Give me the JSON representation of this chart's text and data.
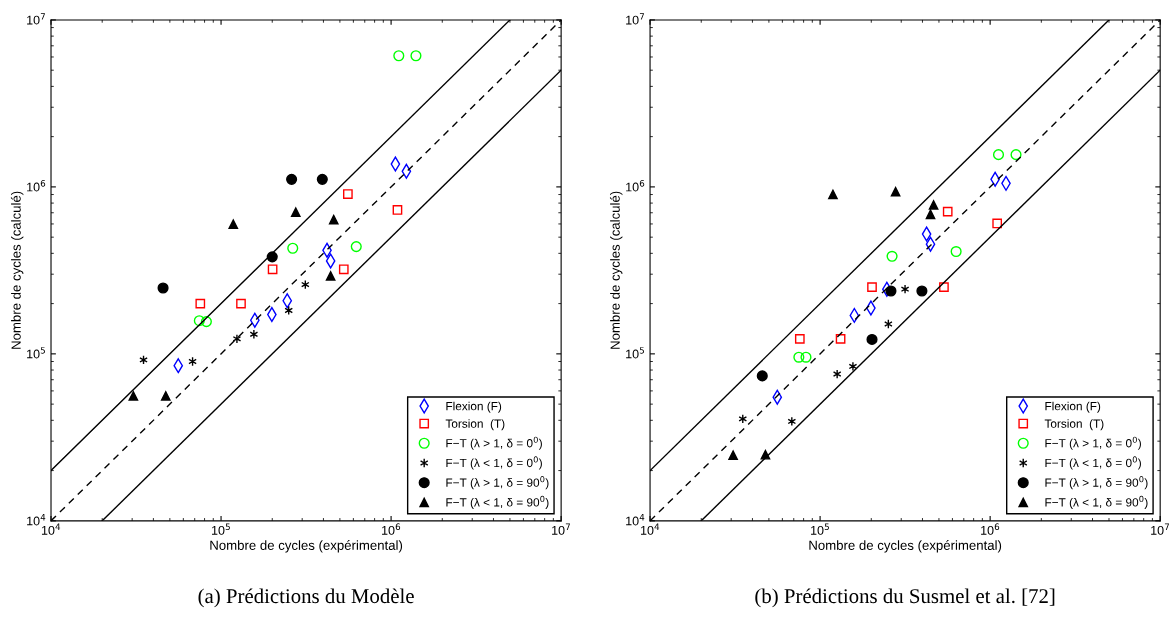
{
  "chart_data": [
    {
      "type": "scatter",
      "title": "(a) Prédictions du Modèle",
      "xlabel": "Nombre de cycles (expérimental)",
      "ylabel": "Nombre de cycles (calculé)",
      "log": "xy",
      "grid": false,
      "legend": "bottom right",
      "xlim": [
        10000,
        10000000
      ],
      "ylim": [
        10000,
        10000000
      ],
      "xticks": [
        {
          "value": 10000,
          "label": "10$^{4}$"
        },
        {
          "value": 100000,
          "label": "10$^{5}$"
        },
        {
          "value": 1000000,
          "label": "10$^{6}$"
        },
        {
          "value": 10000000,
          "label": "10$^{7}$"
        }
      ],
      "yticks": [
        {
          "value": 10000,
          "label": "10$^{4}$"
        },
        {
          "value": 100000,
          "label": "10$^{5}$"
        },
        {
          "value": 1000000,
          "label": "10$^{6}$"
        },
        {
          "value": 10000000,
          "label": "10$^{7}$"
        }
      ],
      "series": [
        {
          "name": "Flexion (F)",
          "color": "#0000ff",
          "marker": "diamond",
          "x": [
            56000,
            158000,
            199000,
            245000,
            420000,
            441000,
            1060000,
            1230000
          ],
          "values": [
            85000,
            159000,
            172000,
            208000,
            417000,
            360000,
            1370000,
            1240000
          ]
        },
        {
          "name": "Torsion  (T)",
          "color": "#ff0000",
          "marker": "square",
          "x": [
            75500,
            131000,
            201000,
            527000,
            557000,
            1090000
          ],
          "values": [
            200000,
            200000,
            321000,
            321000,
            906000,
            728000
          ]
        },
        {
          "name": "F−T (λ > 1, δ = 0$^{0}$)",
          "color": "#00ff00",
          "marker": "circle",
          "x": [
            74500,
            82000,
            264000,
            624000,
            1110000,
            1400000
          ],
          "values": [
            158000,
            156000,
            429000,
            439000,
            6100000,
            6100000
          ]
        },
        {
          "name": "F−T (λ < 1, δ = 0$^{0}$)",
          "color": "#000000",
          "marker": "cross",
          "x": [
            35000,
            68000,
            124000,
            156000,
            250000,
            313000
          ],
          "values": [
            92000,
            90000,
            123000,
            131000,
            182000,
            260000
          ]
        },
        {
          "name": "F−T (λ > 1, δ = 90$^{0}$)",
          "color": "#000000",
          "marker": "circle",
          "x": [
            45600,
            200000,
            260000,
            394000
          ],
          "values": [
            248000,
            381000,
            1110000,
            1110000
          ]
        },
        {
          "name": "F−T (λ < 1, δ = 90$^{0}$)",
          "color": "#000000",
          "marker": "triangle",
          "x": [
            30500,
            47300,
            118000,
            275000,
            460000,
            441000
          ],
          "values": [
            56000,
            56000,
            598000,
            706000,
            637000,
            293000
          ]
        },
        {
          "type": "line",
          "color": "#000000",
          "line_style": "solid",
          "marker": "none",
          "x": [
            10000,
            5000000
          ],
          "values": [
            20000,
            10000000
          ]
        },
        {
          "type": "line",
          "color": "#000000",
          "line_style": "dashed",
          "marker": "none",
          "x": [
            10000,
            10000000
          ],
          "values": [
            10000,
            10000000
          ]
        },
        {
          "type": "line",
          "color": "#000000",
          "line_style": "solid",
          "marker": "none",
          "x": [
            20000,
            10000000
          ],
          "values": [
            10000,
            5000000
          ]
        }
      ]
    },
    {
      "type": "scatter",
      "title": "(b) Prédictions du Susmel et al. [72]",
      "xlabel": "Nombre de cycles (expérimental)",
      "ylabel": "Nombre de cycles (calculé)",
      "log": "xy",
      "grid": false,
      "legend": "bottom right",
      "xlim": [
        10000,
        10000000
      ],
      "ylim": [
        10000,
        10000000
      ],
      "xticks": [
        {
          "value": 10000,
          "label": "10$^{4}$"
        },
        {
          "value": 100000,
          "label": "10$^{5}$"
        },
        {
          "value": 1000000,
          "label": "10$^{6}$"
        },
        {
          "value": 10000000,
          "label": "10$^{7}$"
        }
      ],
      "yticks": [
        {
          "value": 10000,
          "label": "10$^{4}$"
        },
        {
          "value": 100000,
          "label": "10$^{5}$"
        },
        {
          "value": 1000000,
          "label": "10$^{6}$"
        },
        {
          "value": 10000000,
          "label": "10$^{7}$"
        }
      ],
      "series": [
        {
          "name": "Flexion (F)",
          "color": "#0000ff",
          "marker": "diamond",
          "x": [
            56000,
            159000,
            199000,
            247000,
            423000,
            446000,
            1070000,
            1240000
          ],
          "values": [
            55000,
            170000,
            188000,
            244000,
            522000,
            454000,
            1110000,
            1050000
          ]
        },
        {
          "name": "Torsion  (T)",
          "color": "#ff0000",
          "marker": "square",
          "x": [
            76000,
            132000,
            202000,
            535000,
            563000,
            1100000
          ],
          "values": [
            123000,
            123000,
            251000,
            251000,
            711000,
            604000
          ]
        },
        {
          "name": "F−T (λ > 1, δ = 0$^{0}$)",
          "color": "#00ff00",
          "marker": "circle",
          "x": [
            75000,
            82600,
            265000,
            631000,
            1120000,
            1420000
          ],
          "values": [
            95500,
            95500,
            384000,
            410000,
            1560000,
            1560000
          ]
        },
        {
          "name": "F−T (λ < 1, δ = 0$^{0}$)",
          "color": "#000000",
          "marker": "cross",
          "x": [
            35100,
            68200,
            126000,
            156000,
            252000,
            316000
          ],
          "values": [
            40800,
            39400,
            75700,
            84100,
            151000,
            244000
          ]
        },
        {
          "name": "F−T (λ > 1, δ = 90$^{0}$)",
          "color": "#000000",
          "marker": "circle",
          "x": [
            45700,
            202000,
            261000,
            397000
          ],
          "values": [
            73800,
            122000,
            238000,
            238000
          ]
        },
        {
          "name": "F−T (λ < 1, δ = 90$^{0}$)",
          "color": "#000000",
          "marker": "triangle",
          "x": [
            30800,
            47700,
            119000,
            278000,
            465000,
            446000
          ],
          "values": [
            24700,
            24900,
            902000,
            937000,
            780000,
            685000
          ]
        },
        {
          "type": "line",
          "color": "#000000",
          "line_style": "solid",
          "marker": "none",
          "x": [
            10000,
            5000000
          ],
          "values": [
            20000,
            10000000
          ]
        },
        {
          "type": "line",
          "color": "#000000",
          "line_style": "dashed",
          "marker": "none",
          "x": [
            10000,
            10000000
          ],
          "values": [
            10000,
            10000000
          ]
        },
        {
          "type": "line",
          "color": "#000000",
          "line_style": "solid",
          "marker": "none",
          "x": [
            20000,
            10000000
          ],
          "values": [
            10000,
            5000000
          ]
        }
      ]
    }
  ]
}
